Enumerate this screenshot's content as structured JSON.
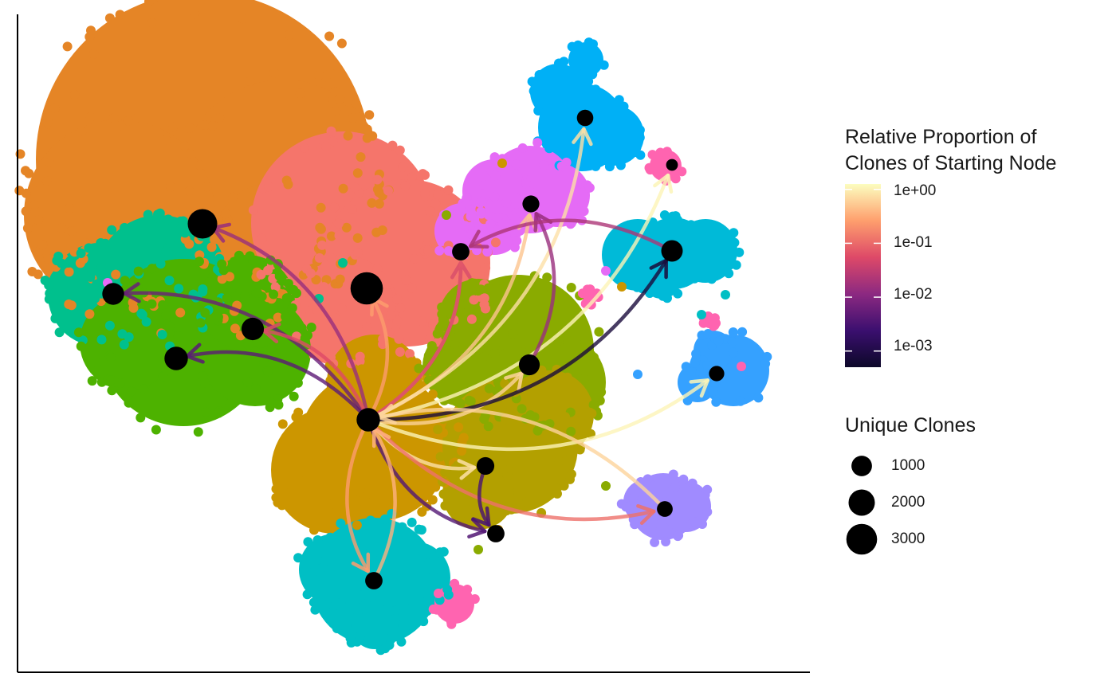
{
  "chart_data": {
    "type": "scatter",
    "description_of_layers": "UMAP-like embedding of cells colored by cluster; black nodes sized by unique clones; curved arrows from a starting node to other nodes colored by relative clone proportion",
    "xlabel": "",
    "ylabel": "",
    "grid": false,
    "legend_placement": "right",
    "color_legend": {
      "title_line1": "Relative Proportion of",
      "title_line2": "Clones of Starting Node",
      "scale": "log10",
      "ticks": [
        "1e+00",
        "1e-01",
        "1e-02",
        "1e-03"
      ],
      "tick_values": [
        1,
        0.1,
        0.01,
        0.001
      ],
      "palette": [
        "#0d0829",
        "#3b0f6f",
        "#8c2981",
        "#de4968",
        "#fe9f6d",
        "#fcfdbf"
      ]
    },
    "size_legend": {
      "title": "Unique Clones",
      "entries": [
        {
          "label": "1000",
          "value": 1000
        },
        {
          "label": "2000",
          "value": 2000
        },
        {
          "label": "3000",
          "value": 3000
        }
      ]
    },
    "clusters": [
      {
        "id": "c1",
        "color": "#e58526"
      },
      {
        "id": "c2",
        "color": "#f5756b"
      },
      {
        "id": "c3",
        "color": "#00c08d"
      },
      {
        "id": "c4",
        "color": "#4db200"
      },
      {
        "id": "c5",
        "color": "#cc9600"
      },
      {
        "id": "c6",
        "color": "#8aab00"
      },
      {
        "id": "c7",
        "color": "#b3a000"
      },
      {
        "id": "c8",
        "color": "#00bfc4"
      },
      {
        "id": "c9",
        "color": "#00b0f6"
      },
      {
        "id": "c10",
        "color": "#00bad8"
      },
      {
        "id": "c11",
        "color": "#35a1ff"
      },
      {
        "id": "c12",
        "color": "#e56bf6"
      },
      {
        "id": "c13",
        "color": "#ff64b0"
      },
      {
        "id": "c14",
        "color": "#a08bff"
      }
    ],
    "nodes": [
      {
        "id": "n_start",
        "clones": 1450
      },
      {
        "id": "n_orange",
        "clones": 2700
      },
      {
        "id": "n_salmon",
        "clones": 3400
      },
      {
        "id": "n_green_teal",
        "clones": 1200
      },
      {
        "id": "n_green_mid",
        "clones": 1300
      },
      {
        "id": "n_green_low",
        "clones": 1450
      },
      {
        "id": "n_olive",
        "clones": 1050
      },
      {
        "id": "n_olive2",
        "clones": 650
      },
      {
        "id": "n_bottom",
        "clones": 600
      },
      {
        "id": "n_pink_small",
        "clones": 300
      },
      {
        "id": "n_teal_bottom",
        "clones": 600
      },
      {
        "id": "n_blue_top",
        "clones": 500
      },
      {
        "id": "n_pink_top",
        "clones": 150
      },
      {
        "id": "n_magenta",
        "clones": 550
      },
      {
        "id": "n_pink_mid",
        "clones": 600
      },
      {
        "id": "n_cyan",
        "clones": 1150
      },
      {
        "id": "n_blue_right",
        "clones": 400
      },
      {
        "id": "n_lavender",
        "clones": 450
      }
    ],
    "edges": [
      {
        "from": "n_start",
        "to": "n_orange",
        "proportion": 0.02
      },
      {
        "from": "n_start",
        "to": "n_green_teal",
        "proportion": 0.008
      },
      {
        "from": "n_start",
        "to": "n_green_low",
        "proportion": 0.006
      },
      {
        "from": "n_start",
        "to": "n_green_mid",
        "proportion": 0.08
      },
      {
        "from": "n_start",
        "to": "n_salmon",
        "proportion": 0.3
      },
      {
        "from": "n_start",
        "to": "n_pink_small",
        "proportion": 0.04
      },
      {
        "from": "n_start",
        "to": "n_pink_mid",
        "proportion": 0.1
      },
      {
        "from": "n_start",
        "to": "n_magenta",
        "proportion": 0.5
      },
      {
        "from": "n_start",
        "to": "n_blue_top",
        "proportion": 0.7
      },
      {
        "from": "n_start",
        "to": "n_pink_top",
        "proportion": 0.9
      },
      {
        "from": "n_start",
        "to": "n_olive",
        "proportion": 0.6
      },
      {
        "from": "n_start",
        "to": "n_cyan",
        "proportion": 0.0008
      },
      {
        "from": "n_start",
        "to": "n_blue_right",
        "proportion": 0.9
      },
      {
        "from": "n_start",
        "to": "n_olive2",
        "proportion": 0.7
      },
      {
        "from": "n_start",
        "to": "n_bottom",
        "proportion": 0.005
      },
      {
        "from": "n_start",
        "to": "n_lavender",
        "proportion": 0.15
      },
      {
        "from": "n_start",
        "to": "n_teal_bottom",
        "proportion": 0.3
      },
      {
        "from": "n_olive",
        "to": "n_magenta",
        "proportion": 0.02
      },
      {
        "from": "n_olive2",
        "to": "n_bottom",
        "proportion": 0.004
      },
      {
        "from": "n_teal_bottom",
        "to": "n_start",
        "proportion": 0.4
      },
      {
        "from": "n_lavender",
        "to": "n_start",
        "proportion": 0.6
      },
      {
        "from": "n_cyan",
        "to": "n_pink_small",
        "proportion": 0.03
      }
    ]
  }
}
